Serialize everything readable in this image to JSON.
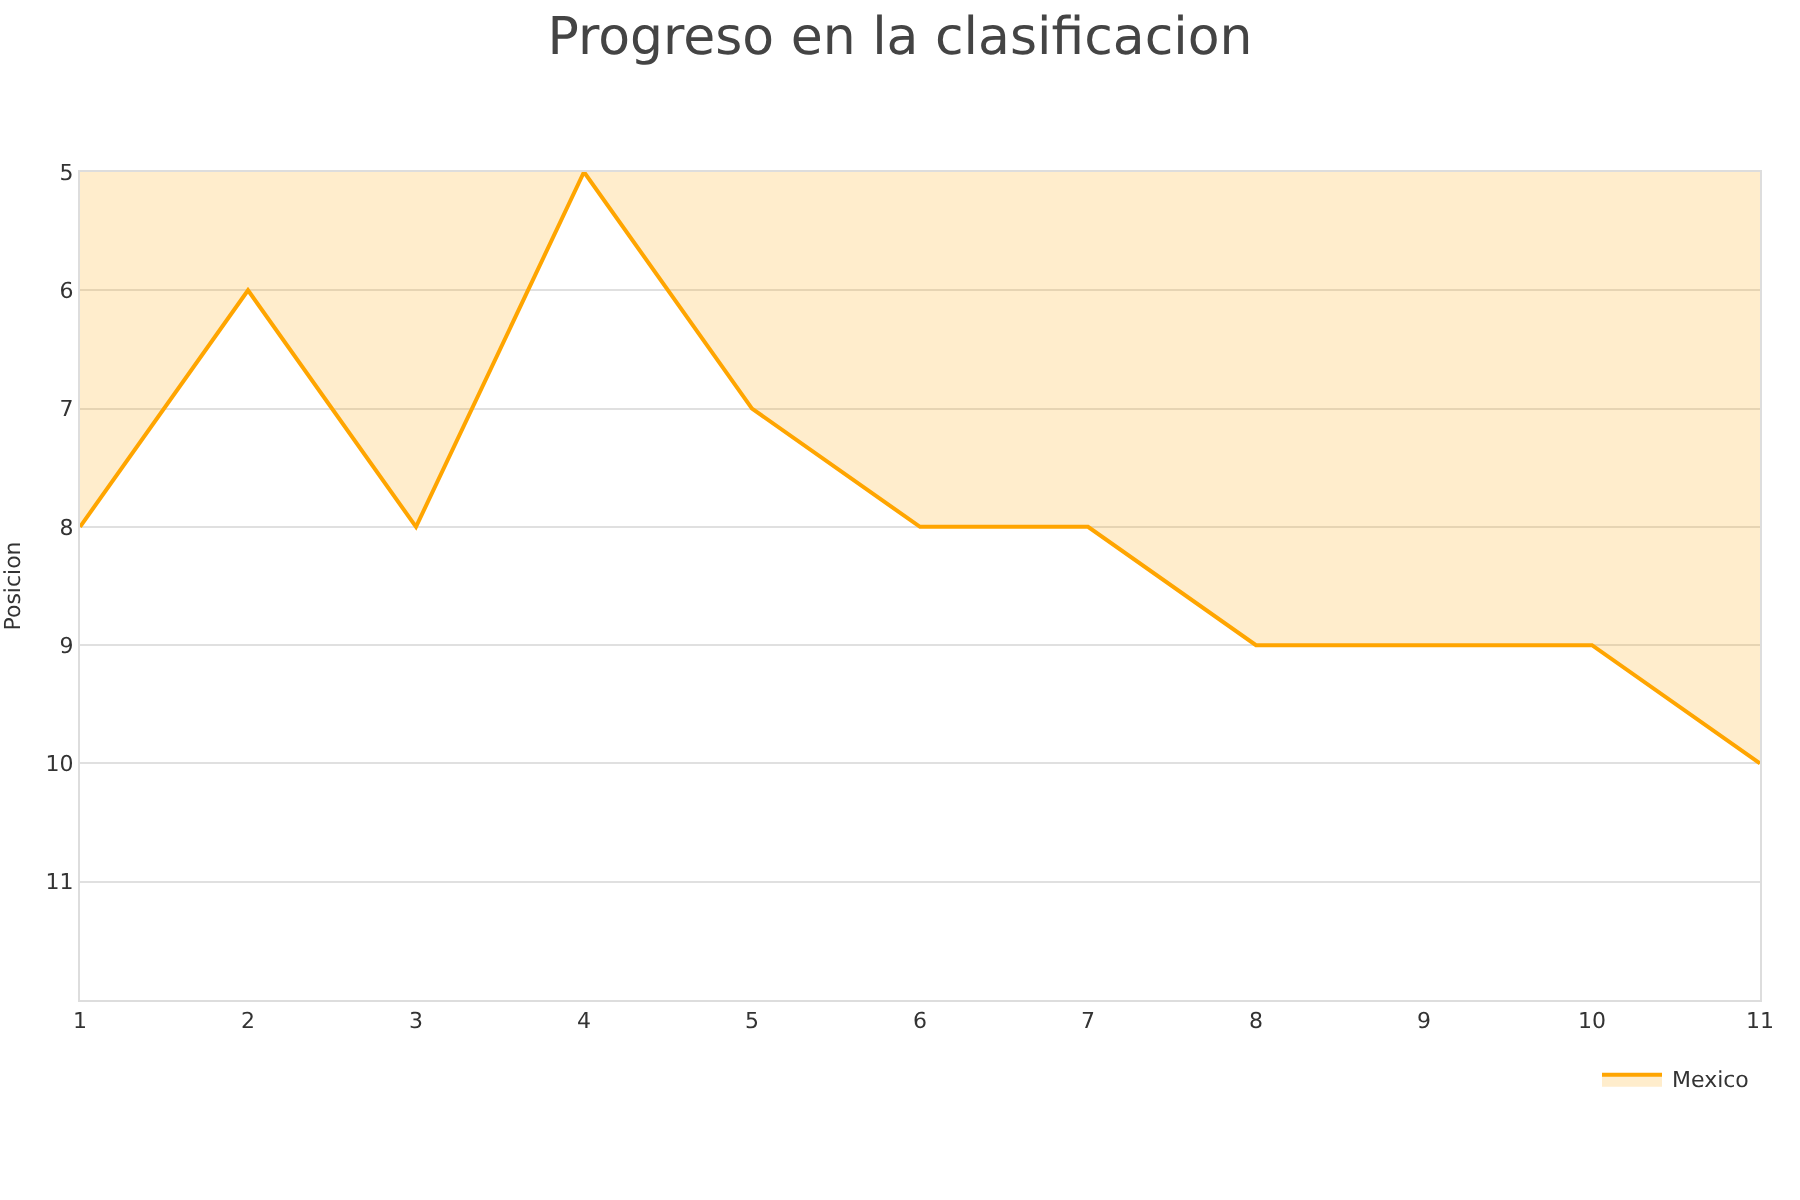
{
  "chart_data": {
    "type": "area",
    "title": "Progreso en la clasificacion",
    "ylabel": "Posicion",
    "x": [
      1,
      2,
      3,
      4,
      5,
      6,
      7,
      8,
      9,
      10,
      11
    ],
    "series": [
      {
        "name": "Mexico",
        "color": "#ffa500",
        "values": [
          8,
          6,
          8,
          5,
          7,
          8,
          8,
          9,
          9,
          9,
          10
        ]
      }
    ],
    "xlim": [
      1,
      11
    ],
    "xticks": [
      1,
      2,
      3,
      4,
      5,
      6,
      7,
      8,
      9,
      10,
      11
    ],
    "ylim": [
      12,
      5
    ],
    "yticks": [
      5,
      6,
      7,
      8,
      9,
      10,
      11
    ],
    "grid": "y",
    "legend": "bottom right",
    "marker": "none",
    "line_style": "solid"
  }
}
